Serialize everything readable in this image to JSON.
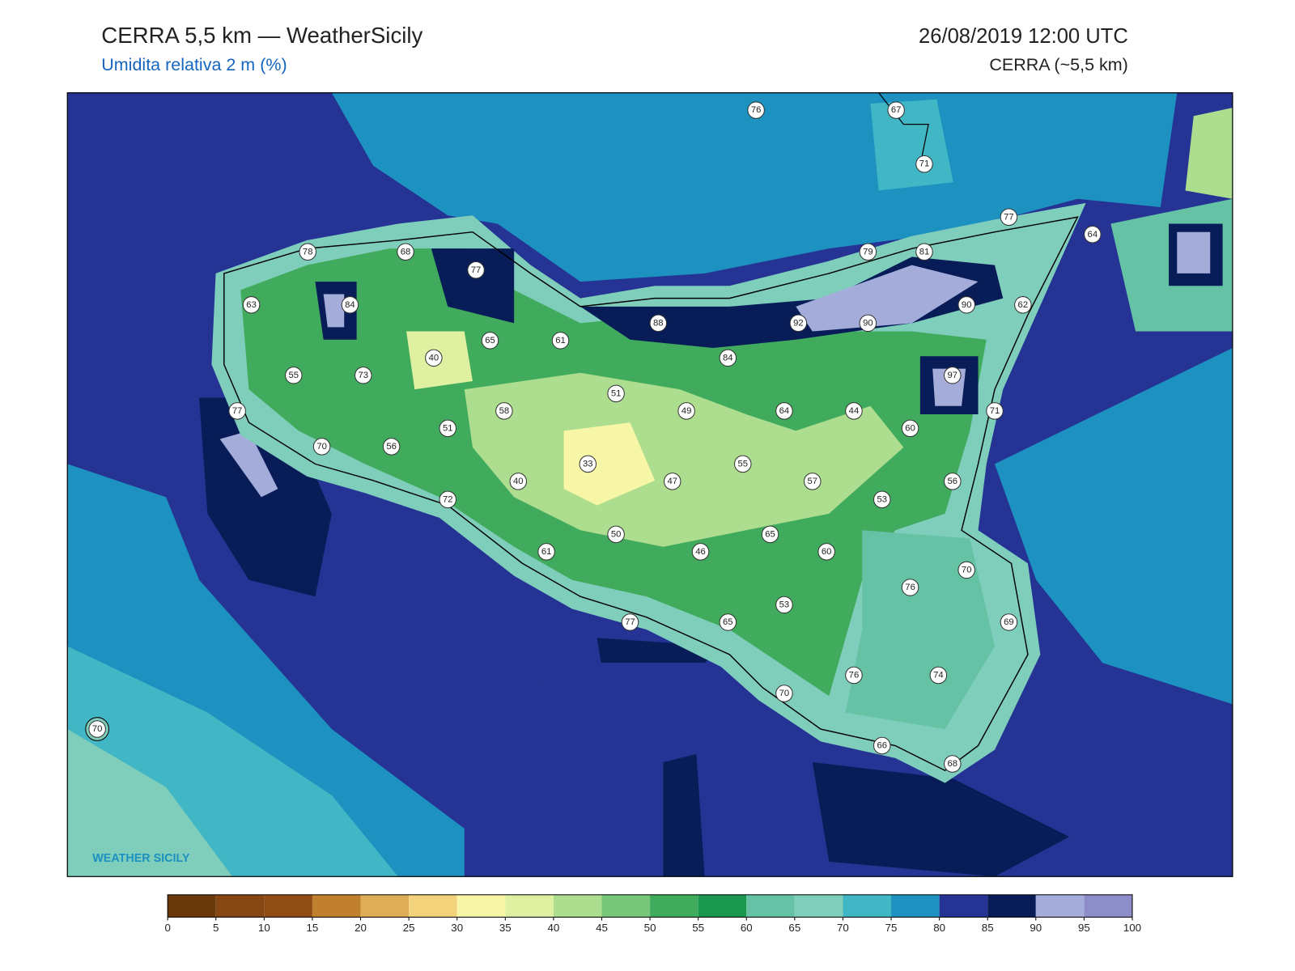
{
  "header": {
    "title": "CERRA 5,5 km — WeatherSicily",
    "subtitle": "Umidita relativa 2 m (%)",
    "datetime": "26/08/2019 12:00 UTC",
    "source": "CERRA (~5,5 km)"
  },
  "map": {
    "station_values": [
      76,
      67,
      71,
      77,
      64,
      78,
      68,
      77,
      79,
      81,
      63,
      84,
      90,
      62,
      88,
      92,
      90,
      65,
      61,
      40,
      84,
      55,
      73,
      97,
      51,
      77,
      58,
      49,
      64,
      44,
      71,
      51,
      60,
      70,
      56,
      33,
      55,
      40,
      47,
      57,
      56,
      72,
      53,
      50,
      65,
      61,
      46,
      60,
      70,
      76,
      53,
      77,
      65,
      69,
      76,
      74,
      70,
      70,
      66,
      68
    ],
    "logo": "WEATHER SICILY"
  },
  "colorbar": {
    "ticks": [
      0,
      5,
      10,
      15,
      20,
      25,
      30,
      35,
      40,
      45,
      50,
      55,
      60,
      65,
      70,
      75,
      80,
      85,
      90,
      95,
      100
    ],
    "colors": [
      "#6b3a0b",
      "#874712",
      "#8f4c14",
      "#c0802d",
      "#e0ad57",
      "#f2d27b",
      "#f7f5a6",
      "#dff0a0",
      "#addd8e",
      "#78c679",
      "#41ab5d",
      "#1a9850",
      "#66c2a4",
      "#7fcdbb",
      "#41b6c4",
      "#1d91c0",
      "#253494",
      "#081d58",
      "#a4acd9",
      "#8c8dc9"
    ]
  }
}
